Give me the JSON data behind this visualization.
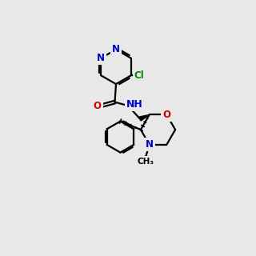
{
  "bg_color": "#e8e8e8",
  "bond_color": "#000000",
  "N_color": "#0000cc",
  "O_color": "#cc0000",
  "Cl_color": "#008800",
  "lw": 1.6,
  "fs": 8.5
}
